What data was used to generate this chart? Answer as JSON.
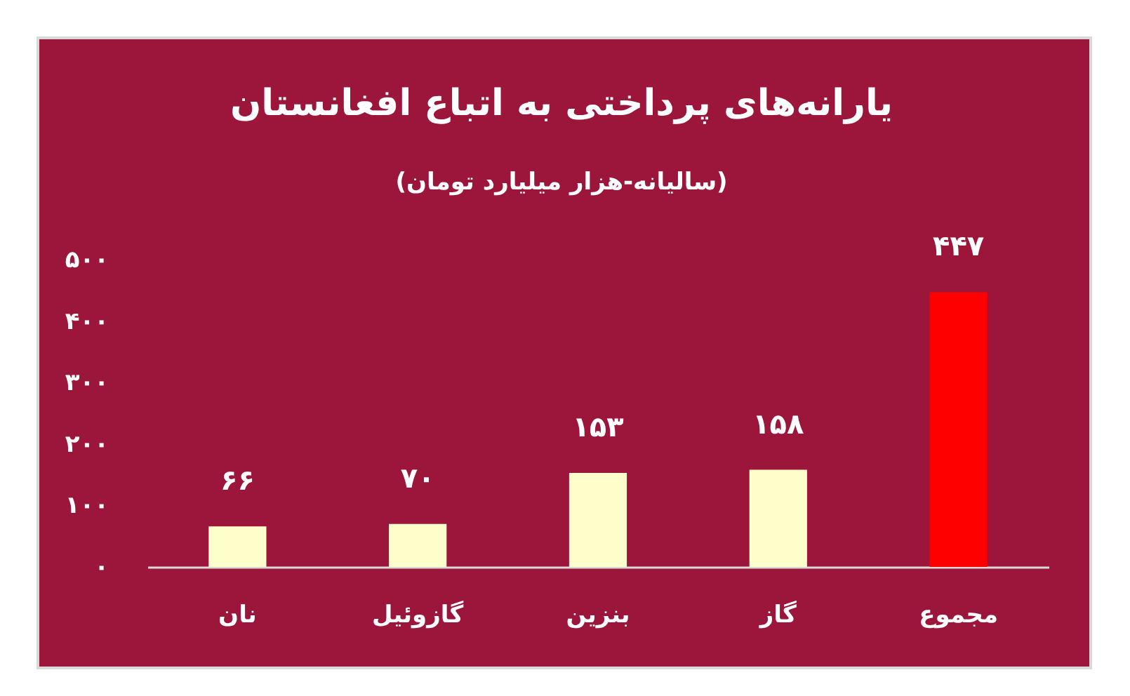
{
  "chart_data": {
    "type": "bar",
    "title": "یارانه‌های پرداختی به اتباع افغانستان",
    "subtitle": "(سالیانه-هزار میلیارد تومان)",
    "categories": [
      "نان",
      "گازوئیل",
      "بنزین",
      "گاز",
      "مجموع"
    ],
    "values": [
      66,
      70,
      153,
      158,
      447
    ],
    "colors": [
      "#ffffcc",
      "#ffffcc",
      "#ffffcc",
      "#ffffcc",
      "#ff0000"
    ],
    "value_labels": [
      "۶۶",
      "۷۰",
      "۱۵۳",
      "۱۵۸",
      "۴۴۷"
    ],
    "ylim": [
      0,
      500
    ],
    "yticks": [
      {
        "value": 0,
        "label": "۰"
      },
      {
        "value": 100,
        "label": "۱۰۰"
      },
      {
        "value": 200,
        "label": "۲۰۰"
      },
      {
        "value": 300,
        "label": "۳۰۰"
      },
      {
        "value": 400,
        "label": "۴۰۰"
      },
      {
        "value": 500,
        "label": "۵۰۰"
      }
    ]
  }
}
